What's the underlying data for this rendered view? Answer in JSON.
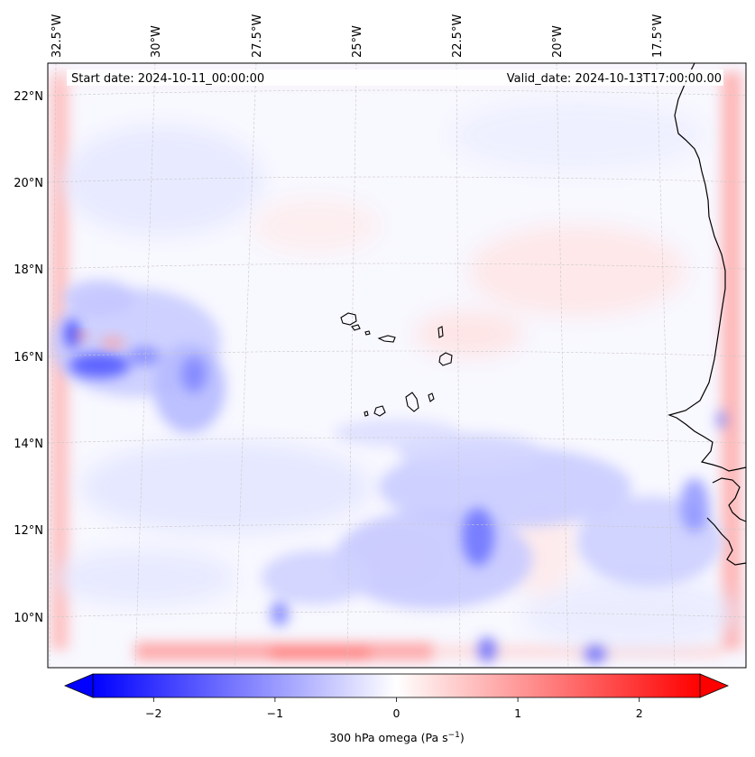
{
  "map": {
    "start_date_label": "Start date: 2024-10-11_00:00:00",
    "valid_date_label": "Valid_date: 2024-10-13T17:00:00.00",
    "lon_labels": [
      "32.5°W",
      "30°W",
      "27.5°W",
      "25°W",
      "22.5°W",
      "20°W",
      "17.5°W"
    ],
    "lat_labels": [
      "22°N",
      "20°N",
      "18°N",
      "16°N",
      "14°N",
      "12°N",
      "10°N"
    ],
    "gridlines": "dashed"
  },
  "colorbar": {
    "label": "300 hPa omega (Pa s",
    "label_superscript": "−1",
    "label_suffix": ")",
    "tick_labels": [
      "−2",
      "−1",
      "0",
      "1",
      "2"
    ],
    "tick_values": [
      -2,
      -1,
      0,
      1,
      2
    ],
    "range": [
      -2.5,
      2.5
    ],
    "colormap": "bwr",
    "color_low": "#0000ff",
    "color_mid": "#ffffff",
    "color_high": "#ff0000",
    "extend": "both"
  }
}
